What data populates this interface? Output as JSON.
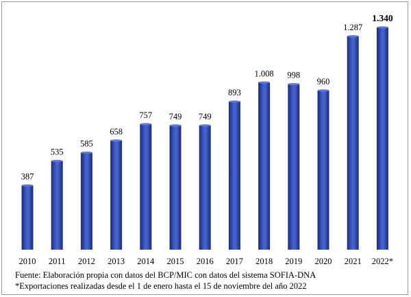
{
  "chart_data": {
    "type": "bar",
    "categories": [
      "2010",
      "2011",
      "2012",
      "2013",
      "2014",
      "2015",
      "2016",
      "2017",
      "2018",
      "2019",
      "2020",
      "2021",
      "2022*"
    ],
    "values": [
      387,
      535,
      585,
      658,
      757,
      749,
      749,
      893,
      1008,
      998,
      960,
      1287,
      1340
    ],
    "value_labels": [
      "387",
      "535",
      "585",
      "658",
      "757",
      "749",
      "749",
      "893",
      "1.008",
      "998",
      "960",
      "1.287",
      "1.340"
    ],
    "highlight_last_label": true,
    "bar_color": "#2f46a4",
    "ylim": [
      0,
      1340
    ],
    "grid": false,
    "legend": "none",
    "title": "",
    "xlabel": "",
    "ylabel": ""
  },
  "notes": {
    "source": "Fuente: Elaboración propia con datos del BCP/MIC con datos del sistema SOFIA-DNA",
    "footnote": "*Exportaciones realizadas desde el 1 de enero hasta el 15 de noviembre del año 2022"
  }
}
